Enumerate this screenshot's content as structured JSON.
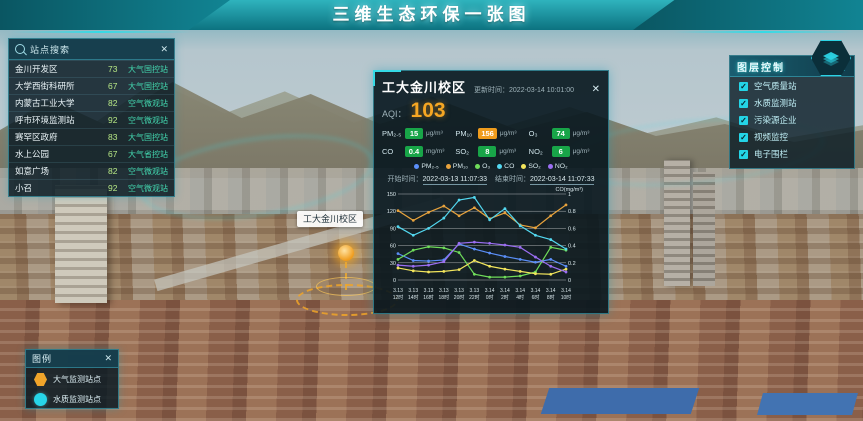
{
  "icons": {
    "close": "✕",
    "check": "✓"
  },
  "header": {
    "title": "三维生态环保一张图"
  },
  "search_panel": {
    "title": "站点搜索",
    "rows": [
      {
        "name": "金川开发区",
        "value": "73",
        "type": "大气国控站"
      },
      {
        "name": "大学西街科研所",
        "value": "67",
        "type": "大气国控站"
      },
      {
        "name": "内蒙古工业大学",
        "value": "82",
        "type": "空气微观站"
      },
      {
        "name": "呼市环境监测站",
        "value": "92",
        "type": "空气微观站"
      },
      {
        "name": "赛罕区政府",
        "value": "83",
        "type": "大气国控站"
      },
      {
        "name": "水上公园",
        "value": "67",
        "type": "大气省控站"
      },
      {
        "name": "如意广场",
        "value": "82",
        "type": "空气微观站"
      },
      {
        "name": "小召",
        "value": "92",
        "type": "空气微观站"
      }
    ]
  },
  "map": {
    "marker_label": "工大金川校区"
  },
  "popup": {
    "title": "工大金川校区",
    "update_label": "更新时间：",
    "update_time": "2022-03-14 10:01:00",
    "aqi_label": "AQI：",
    "aqi_value": "103",
    "pollutants": [
      {
        "label": "PM₂.₅",
        "value": "15",
        "unit": "μg/m³",
        "color": "#18a548"
      },
      {
        "label": "PM₁₀",
        "value": "156",
        "unit": "μg/m³",
        "color": "#ef9c1d"
      },
      {
        "label": "O₃",
        "value": "74",
        "unit": "μg/m³",
        "color": "#18a548"
      },
      {
        "label": "CO",
        "value": "0.4",
        "unit": "mg/m³",
        "color": "#18a548"
      },
      {
        "label": "SO₂",
        "value": "8",
        "unit": "μg/m³",
        "color": "#18a548"
      },
      {
        "label": "NO₂",
        "value": "6",
        "unit": "μg/m³",
        "color": "#18a548"
      }
    ],
    "legend_items": [
      {
        "label": "PM₂.₅",
        "color": "#5b8ff9"
      },
      {
        "label": "PM₁₀",
        "color": "#e8a33d"
      },
      {
        "label": "O₃",
        "color": "#6fdc5a"
      },
      {
        "label": "CO",
        "color": "#53d8f0"
      },
      {
        "label": "SO₂",
        "color": "#f2e55c"
      },
      {
        "label": "NO₂",
        "color": "#9b6ef3"
      }
    ],
    "start_label": "开始时间：",
    "start_time": "2022-03-13 11:07:33",
    "end_label": "结束时间：",
    "end_time": "2022-03-14 11:07:33"
  },
  "chart_data": {
    "type": "line",
    "x": [
      "3.13 12时",
      "3.13 14时",
      "3.13 16时",
      "3.13 18时",
      "3.13 20时",
      "3.13 22时",
      "3.14 0时",
      "3.14 2时",
      "3.14 4时",
      "3.14 6时",
      "3.14 8时",
      "3.14 10时"
    ],
    "series": [
      {
        "name": "PM2.5",
        "axis": "left",
        "color": "#5b8ff9",
        "values": [
          46,
          34,
          33,
          35,
          63,
          54,
          47,
          41,
          36,
          31,
          36,
          24
        ]
      },
      {
        "name": "PM10",
        "axis": "left",
        "color": "#e8a33d",
        "values": [
          121,
          104,
          118,
          129,
          112,
          126,
          107,
          117,
          96,
          91,
          112,
          131
        ]
      },
      {
        "name": "O3",
        "axis": "left",
        "color": "#6fdc5a",
        "values": [
          36,
          52,
          58,
          56,
          48,
          10,
          5,
          5,
          7,
          14,
          57,
          52
        ]
      },
      {
        "name": "CO",
        "axis": "right",
        "color": "#53d8f0",
        "values": [
          0.62,
          0.52,
          0.6,
          0.72,
          0.93,
          0.96,
          0.7,
          0.83,
          0.63,
          0.52,
          0.47,
          0.36
        ]
      },
      {
        "name": "SO2",
        "axis": "left",
        "color": "#f2e55c",
        "values": [
          21,
          16,
          14,
          15,
          18,
          34,
          24,
          19,
          15,
          11,
          10,
          19
        ]
      },
      {
        "name": "NO2",
        "axis": "left",
        "color": "#9b6ef3",
        "values": [
          26,
          24,
          26,
          32,
          64,
          66,
          64,
          61,
          57,
          40,
          24,
          14
        ]
      }
    ],
    "left_axis": {
      "ticks": [
        0,
        30,
        60,
        90,
        120,
        150
      ],
      "max": 150
    },
    "right_axis": {
      "ticks": [
        0,
        0.2,
        0.4,
        0.6,
        0.8,
        1
      ],
      "max": 1,
      "title": "CO(mg/m³)"
    },
    "grid": true,
    "legend_position": "top"
  },
  "layer_panel": {
    "title": "图层控制",
    "items": [
      {
        "label": "空气质量站",
        "checked": true
      },
      {
        "label": "水质监测站",
        "checked": true
      },
      {
        "label": "污染源企业",
        "checked": true
      },
      {
        "label": "视频监控",
        "checked": true
      },
      {
        "label": "电子围栏",
        "checked": true
      }
    ]
  },
  "legend_panel": {
    "title": "图例",
    "items": [
      {
        "label": "大气监测站点",
        "color": "#f0a42a",
        "shape": "hexagon"
      },
      {
        "label": "水质监测站点",
        "color": "#27d5e8",
        "shape": "circle"
      }
    ]
  }
}
